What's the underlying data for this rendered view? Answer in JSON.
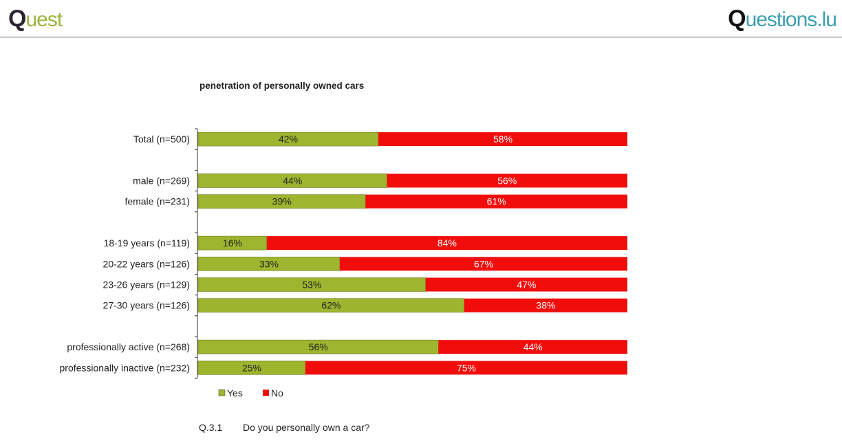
{
  "header": {
    "left_logo": "Quest",
    "right_logo": "Questions.lu"
  },
  "chart_data": {
    "type": "bar",
    "orientation": "horizontal",
    "stacked": true,
    "title": "penetration of personally owned cars",
    "categories": [
      "Total (n=500)",
      null,
      "male (n=269)",
      "female (n=231)",
      null,
      "18-19 years (n=119)",
      "20-22 years (n=126)",
      "23-26 years (n=129)",
      "27-30 years (n=126)",
      null,
      "professionally active (n=268)",
      "professionally inactive (n=232)"
    ],
    "series": [
      {
        "name": "Yes",
        "color": "#9db52f",
        "values": [
          42,
          null,
          44,
          39,
          null,
          16,
          33,
          53,
          62,
          null,
          56,
          25
        ],
        "labels": [
          "42%",
          null,
          "44%",
          "39%",
          null,
          "16%",
          "33%",
          "53%",
          "62%",
          null,
          "56%",
          "25%"
        ]
      },
      {
        "name": "No",
        "color": "#f20d0d",
        "values": [
          58,
          null,
          56,
          61,
          null,
          84,
          67,
          47,
          38,
          null,
          44,
          75
        ],
        "labels": [
          "58%",
          null,
          "56%",
          "61%",
          null,
          "84%",
          "67%",
          "47%",
          "38%",
          null,
          "44%",
          "75%"
        ]
      }
    ],
    "xlim": [
      0,
      100
    ],
    "legend_position": "bottom-left",
    "grid": false
  },
  "footer": {
    "question_id": "Q.3.1",
    "question_text": "Do you personally own a car?"
  }
}
